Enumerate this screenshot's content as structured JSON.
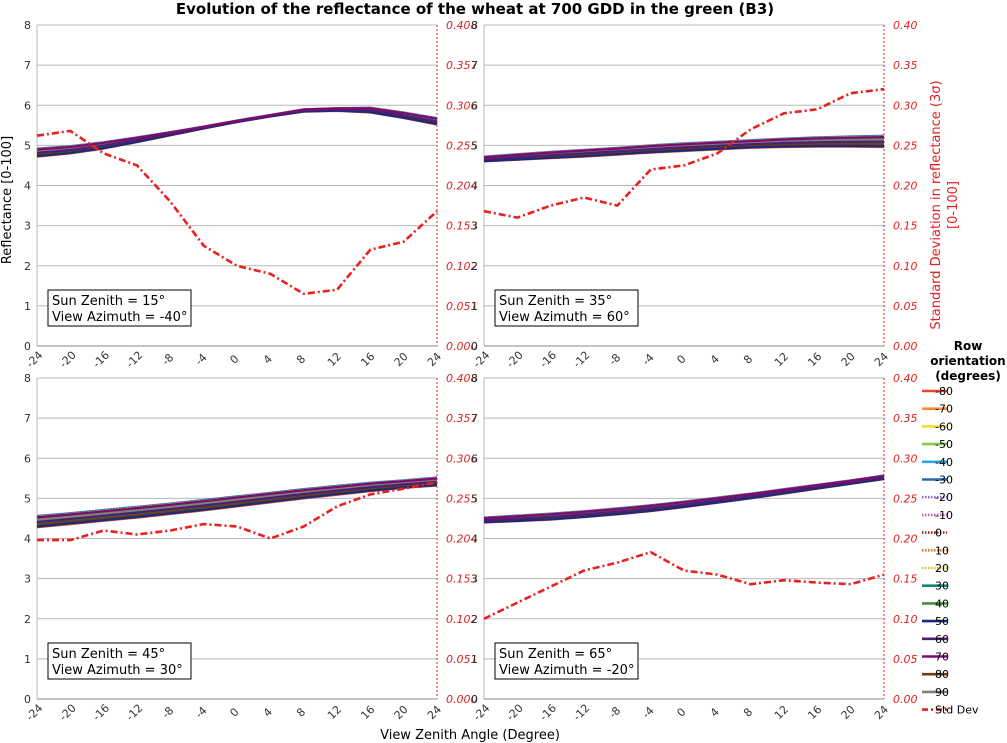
{
  "figure": {
    "title": "Evolution of the reflectance of the wheat at 700 GDD in the green (B3)",
    "x_axis_label": "View Zenith Angle (Degree)",
    "y_axis_label": "Reflectance [0-100]",
    "y2_axis_label_line1": "Standard Deviation in reflectance (3σ)",
    "y2_axis_label_line2": "[0-100]",
    "legend_title": [
      "Row",
      "orientation",
      "(degrees)"
    ]
  },
  "chart_data": {
    "type": "line",
    "x": [
      -24,
      -20,
      -16,
      -12,
      -8,
      -4,
      0,
      4,
      8,
      12,
      16,
      20,
      24
    ],
    "x_tick_labels": [
      "-24",
      "-20",
      "-16",
      "-12",
      "-8",
      "-4",
      "0",
      "4",
      "8",
      "12",
      "16",
      "20",
      "24"
    ],
    "xlim": [
      -24,
      24
    ],
    "ylim": [
      0,
      8
    ],
    "y_ticks": [
      "0",
      "1",
      "2",
      "3",
      "4",
      "5",
      "6",
      "7",
      "8"
    ],
    "y2lim": [
      0,
      0.4
    ],
    "y2_ticks": [
      "0.00",
      "0.05",
      "0.10",
      "0.15",
      "0.20",
      "0.25",
      "0.30",
      "0.35",
      "0.40"
    ],
    "y2_ticks_panel": [
      "0.000",
      "0.051",
      "0.102",
      "0.153",
      "0.204",
      "0.255",
      "0.306",
      "0.357",
      "0.408"
    ],
    "grid": true,
    "legend_position": "right",
    "series_styles": [
      {
        "name": "-80",
        "color": "#e8452a",
        "dash": "solid"
      },
      {
        "name": "-70",
        "color": "#f4902a",
        "dash": "solid"
      },
      {
        "name": "-60",
        "color": "#f0e030",
        "dash": "solid"
      },
      {
        "name": "-50",
        "color": "#8cc84a",
        "dash": "solid"
      },
      {
        "name": "-40",
        "color": "#2aaad8",
        "dash": "solid"
      },
      {
        "name": "-30",
        "color": "#2a6ab4",
        "dash": "solid"
      },
      {
        "name": "-20",
        "color": "#9060c8",
        "dash": "dotted"
      },
      {
        "name": "-10",
        "color": "#c060b0",
        "dash": "dotted"
      },
      {
        "name": "0",
        "color": "#a02818",
        "dash": "dotted"
      },
      {
        "name": "10",
        "color": "#e07020",
        "dash": "dotted"
      },
      {
        "name": "20",
        "color": "#d8c020",
        "dash": "dotted"
      },
      {
        "name": "30",
        "color": "#108878",
        "dash": "solid"
      },
      {
        "name": "40",
        "color": "#4a9040",
        "dash": "solid"
      },
      {
        "name": "50",
        "color": "#1a2a7a",
        "dash": "solid"
      },
      {
        "name": "60",
        "color": "#4a2070",
        "dash": "solid"
      },
      {
        "name": "70",
        "color": "#800870",
        "dash": "solid"
      },
      {
        "name": "80",
        "color": "#6a4010",
        "dash": "solid"
      },
      {
        "name": "90",
        "color": "#808080",
        "dash": "solid"
      },
      {
        "name": "Std Dev",
        "color": "#e82020",
        "dash": "dashdot"
      }
    ],
    "panels": [
      {
        "sun_zenith": "Sun Zenith = 15°",
        "view_azimuth": "View Azimuth = -40°",
        "reflectance_low": [
          4.72,
          4.8,
          4.92,
          5.08,
          5.25,
          5.42,
          5.58,
          5.72,
          5.84,
          5.86,
          5.82,
          5.68,
          5.52
        ],
        "reflectance_high": [
          4.92,
          4.98,
          5.08,
          5.2,
          5.33,
          5.47,
          5.62,
          5.76,
          5.9,
          5.93,
          5.94,
          5.82,
          5.68
        ],
        "std_dev": [
          0.262,
          0.268,
          0.24,
          0.225,
          0.18,
          0.125,
          0.1,
          0.09,
          0.065,
          0.07,
          0.12,
          0.13,
          0.168
        ]
      },
      {
        "sun_zenith": "Sun Zenith = 35°",
        "view_azimuth": "View Azimuth = 60°",
        "reflectance_low": [
          4.6,
          4.64,
          4.68,
          4.72,
          4.77,
          4.82,
          4.86,
          4.9,
          4.94,
          4.96,
          4.97,
          4.97,
          4.96
        ],
        "reflectance_high": [
          4.72,
          4.78,
          4.84,
          4.89,
          4.94,
          5.0,
          5.05,
          5.09,
          5.13,
          5.17,
          5.2,
          5.22,
          5.24
        ],
        "std_dev": [
          0.168,
          0.16,
          0.175,
          0.185,
          0.175,
          0.22,
          0.225,
          0.24,
          0.27,
          0.29,
          0.295,
          0.315,
          0.32
        ]
      },
      {
        "sun_zenith": "Sun Zenith = 45°",
        "view_azimuth": "View Azimuth = 30°",
        "reflectance_low": [
          4.28,
          4.36,
          4.44,
          4.52,
          4.61,
          4.7,
          4.8,
          4.9,
          5.0,
          5.09,
          5.18,
          5.26,
          5.32
        ],
        "reflectance_high": [
          4.56,
          4.63,
          4.71,
          4.79,
          4.87,
          4.96,
          5.05,
          5.14,
          5.23,
          5.31,
          5.39,
          5.45,
          5.52
        ],
        "std_dev": [
          0.198,
          0.198,
          0.21,
          0.205,
          0.21,
          0.218,
          0.215,
          0.2,
          0.215,
          0.24,
          0.255,
          0.262,
          0.27
        ]
      },
      {
        "sun_zenith": "Sun Zenith = 65°",
        "view_azimuth": "View Azimuth = -20°",
        "reflectance_low": [
          4.4,
          4.43,
          4.47,
          4.53,
          4.6,
          4.68,
          4.78,
          4.89,
          5.0,
          5.12,
          5.24,
          5.36,
          5.48
        ],
        "reflectance_high": [
          4.52,
          4.57,
          4.62,
          4.68,
          4.75,
          4.83,
          4.92,
          5.02,
          5.12,
          5.23,
          5.34,
          5.45,
          5.57
        ],
        "std_dev": [
          0.1,
          0.12,
          0.14,
          0.16,
          0.17,
          0.183,
          0.16,
          0.155,
          0.143,
          0.148,
          0.145,
          0.143,
          0.155
        ]
      }
    ]
  }
}
